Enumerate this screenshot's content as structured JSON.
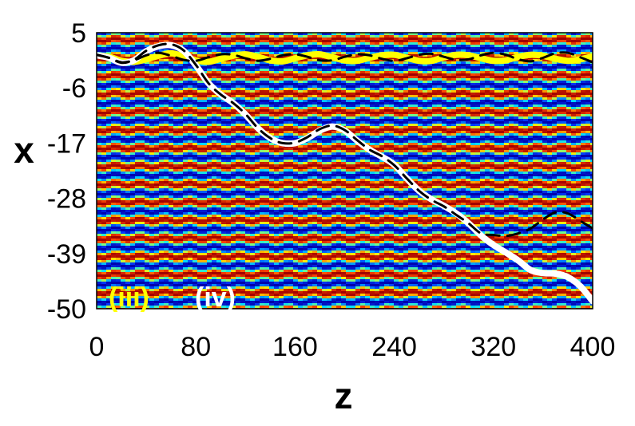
{
  "chart_data": {
    "type": "line",
    "title": "",
    "xlabel": "z",
    "ylabel": "x",
    "xlim": [
      0,
      400
    ],
    "ylim": [
      -50,
      5
    ],
    "x_ticks": [
      0,
      80,
      160,
      240,
      320,
      400
    ],
    "y_ticks": [
      5,
      -6,
      -17,
      -28,
      -39,
      -50
    ],
    "background": "periodic intensity pattern (blue-cyan-yellow-red stripes along z)",
    "stripe_period_x": 3.6,
    "stripe_modulation_period_z": 20,
    "grid": false,
    "legend": "none",
    "colors": {
      "curve_iii": "#ffff00",
      "curve_iv": "#ffffff",
      "reference_dashed": "#000000"
    },
    "curve_labels": [
      {
        "text": "(iii)",
        "color": "#ffff00"
      },
      {
        "text": "(iv)",
        "color": "#ffffff"
      }
    ],
    "series": [
      {
        "id": "iii",
        "style": "solid",
        "color": "#ffff00",
        "x": [
          0,
          10,
          20,
          30,
          40,
          50,
          60,
          70,
          80,
          90,
          100,
          110,
          120,
          130,
          140,
          150,
          160,
          170,
          180,
          190,
          200,
          210,
          220,
          230,
          240,
          250,
          260,
          270,
          280,
          290,
          300,
          310,
          320,
          330,
          340,
          350,
          360,
          370,
          380,
          390,
          400
        ],
        "y": [
          0.5,
          0.2,
          -0.6,
          -0.8,
          -0.3,
          0.4,
          0.9,
          0.3,
          -0.5,
          -0.8,
          -0.2,
          0.4,
          0.7,
          0.2,
          -0.5,
          -0.7,
          -0.1,
          0.5,
          0.7,
          0.1,
          -0.5,
          -0.6,
          0.0,
          0.5,
          0.6,
          0.0,
          -0.6,
          -0.6,
          0.1,
          0.6,
          0.5,
          -0.1,
          -0.6,
          -0.5,
          0.2,
          0.6,
          0.4,
          -0.2,
          -0.6,
          -0.3,
          0.3
        ]
      },
      {
        "id": "iii-ref",
        "style": "dashed",
        "color": "#000000",
        "x": [
          0,
          10,
          20,
          30,
          40,
          50,
          60,
          70,
          80,
          90,
          100,
          110,
          120,
          130,
          140,
          150,
          160,
          170,
          180,
          190,
          200,
          210,
          220,
          230,
          240,
          250,
          260,
          270,
          280,
          290,
          300,
          310,
          320,
          330,
          340,
          350,
          360,
          370,
          380,
          390,
          400
        ],
        "y": [
          0.6,
          0.0,
          -0.9,
          -0.5,
          0.5,
          1.0,
          0.4,
          -0.4,
          -0.6,
          0.1,
          0.7,
          0.6,
          -0.1,
          -0.6,
          -0.2,
          0.5,
          0.7,
          0.2,
          -0.5,
          -0.5,
          0.2,
          0.7,
          0.5,
          -0.2,
          -0.6,
          -0.1,
          0.6,
          0.8,
          0.2,
          -0.4,
          -0.3,
          0.5,
          1.0,
          0.6,
          -0.3,
          -0.7,
          0.0,
          0.9,
          1.0,
          0.1,
          -0.9
        ]
      },
      {
        "id": "iv",
        "style": "solid",
        "color": "#ffffff",
        "x": [
          0,
          10,
          20,
          30,
          40,
          50,
          60,
          70,
          80,
          90,
          100,
          110,
          120,
          130,
          140,
          150,
          160,
          170,
          180,
          190,
          200,
          210,
          220,
          230,
          240,
          250,
          260,
          270,
          280,
          290,
          300,
          310,
          320,
          330,
          340,
          350,
          360,
          370,
          380,
          390,
          400
        ],
        "y": [
          0.5,
          0.0,
          -1.0,
          -0.5,
          1.3,
          2.3,
          2.5,
          1.4,
          -1.5,
          -5.0,
          -7.3,
          -9.0,
          -11.3,
          -14.0,
          -16.0,
          -17.0,
          -17.0,
          -16.0,
          -14.5,
          -13.7,
          -14.5,
          -16.5,
          -18.3,
          -19.7,
          -21.3,
          -24.0,
          -26.5,
          -28.2,
          -29.5,
          -31.0,
          -33.0,
          -35.4,
          -37.3,
          -38.8,
          -40.4,
          -42.3,
          -42.9,
          -43.0,
          -43.7,
          -45.5,
          -48.5
        ]
      },
      {
        "id": "iv-ref",
        "style": "dashed",
        "color": "#000000",
        "x": [
          0,
          10,
          20,
          30,
          40,
          50,
          60,
          70,
          80,
          90,
          100,
          110,
          120,
          130,
          140,
          150,
          160,
          170,
          180,
          190,
          200,
          210,
          220,
          230,
          240,
          250,
          260,
          270,
          280,
          290,
          300,
          310,
          320,
          330,
          340,
          350,
          360,
          370,
          380,
          390,
          400
        ],
        "y": [
          0.6,
          0.0,
          -1.0,
          -0.4,
          1.4,
          2.5,
          2.7,
          1.5,
          -1.4,
          -5.0,
          -7.3,
          -9.0,
          -11.2,
          -14.0,
          -16.0,
          -17.0,
          -16.9,
          -15.8,
          -14.2,
          -13.5,
          -14.4,
          -16.4,
          -18.3,
          -19.6,
          -21.4,
          -24.0,
          -26.5,
          -28.3,
          -29.6,
          -31.3,
          -33.0,
          -35.0,
          -35.3,
          -35.5,
          -35.0,
          -34.0,
          -32.2,
          -30.8,
          -31.0,
          -32.5,
          -34.0
        ]
      }
    ]
  }
}
